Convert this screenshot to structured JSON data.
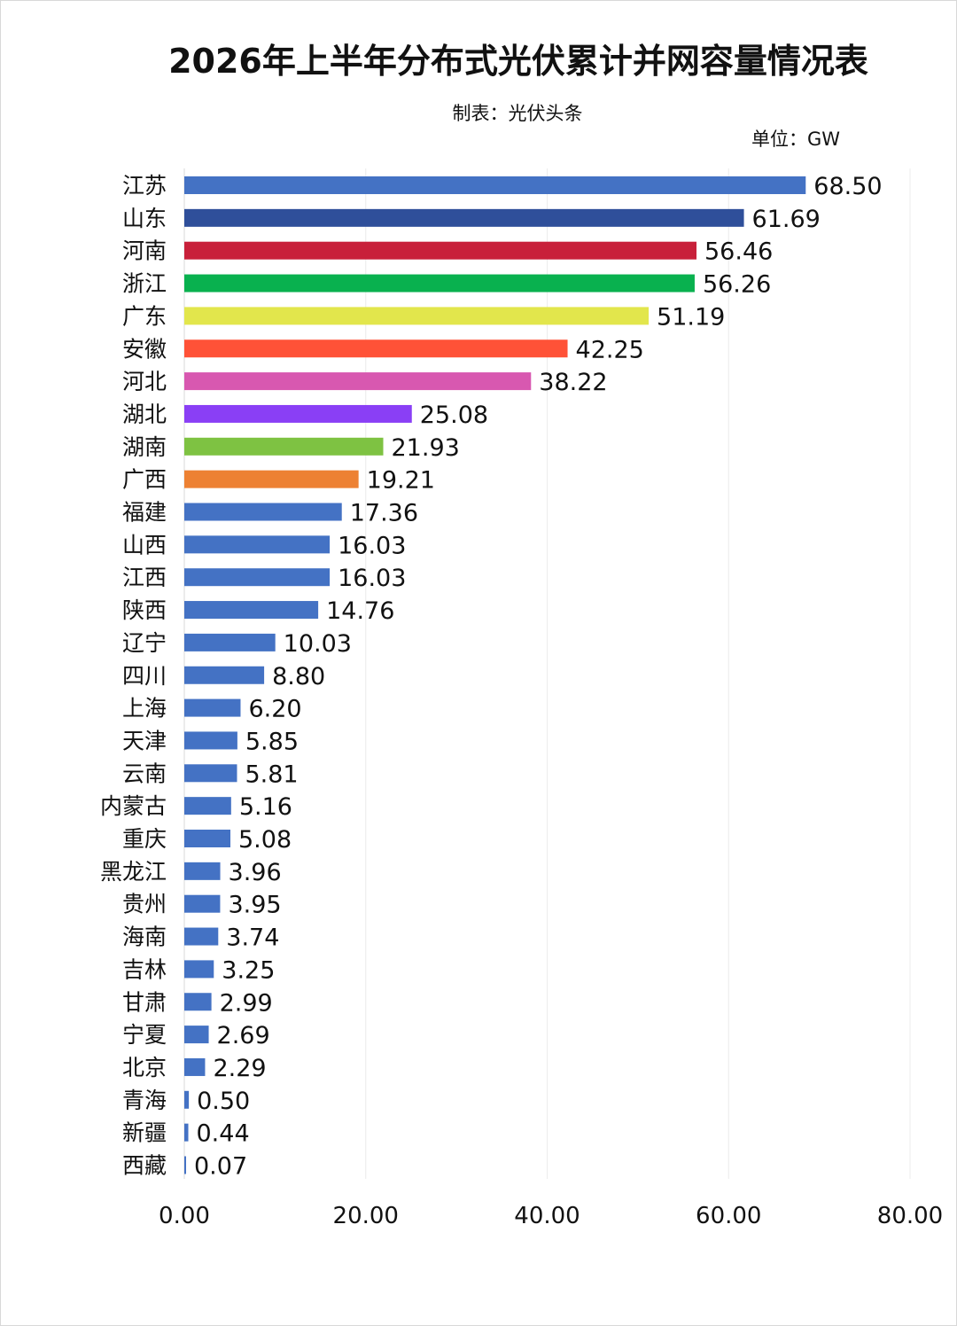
{
  "header": {
    "title": "2026年上半年分布式光伏累计并网容量情况表",
    "subtitle": "制表：光伏头条",
    "unit": "单位：GW"
  },
  "chart_data": {
    "type": "bar",
    "orientation": "horizontal",
    "title": "2026年上半年分布式光伏累计并网容量情况表",
    "xlim": [
      0,
      80
    ],
    "x_ticks": [
      "0.00",
      "20.00",
      "40.00",
      "60.00",
      "80.00"
    ],
    "grid": "vertical",
    "categories": [
      "江苏",
      "山东",
      "河南",
      "浙江",
      "广东",
      "安徽",
      "河北",
      "湖北",
      "湖南",
      "广西",
      "福建",
      "山西",
      "江西",
      "陕西",
      "辽宁",
      "四川",
      "上海",
      "天津",
      "云南",
      "内蒙古",
      "重庆",
      "黑龙江",
      "贵州",
      "海南",
      "吉林",
      "甘肃",
      "宁夏",
      "北京",
      "青海",
      "新疆",
      "西藏"
    ],
    "values": [
      68.5,
      61.69,
      56.46,
      56.26,
      51.19,
      42.25,
      38.22,
      25.08,
      21.93,
      19.21,
      17.36,
      16.03,
      16.03,
      14.76,
      10.03,
      8.8,
      6.2,
      5.85,
      5.81,
      5.16,
      5.08,
      3.96,
      3.95,
      3.74,
      3.25,
      2.99,
      2.69,
      2.29,
      0.5,
      0.44,
      0.07
    ],
    "value_labels": [
      "68.50",
      "61.69",
      "56.46",
      "56.26",
      "51.19",
      "42.25",
      "38.22",
      "25.08",
      "21.93",
      "19.21",
      "17.36",
      "16.03",
      "16.03",
      "14.76",
      "10.03",
      "8.80",
      "6.20",
      "5.85",
      "5.81",
      "5.16",
      "5.08",
      "3.96",
      "3.95",
      "3.74",
      "3.25",
      "2.99",
      "2.69",
      "2.29",
      "0.50",
      "0.44",
      "0.07"
    ],
    "colors": [
      "#4472c4",
      "#2f4f9a",
      "#c8203a",
      "#09b14f",
      "#e2e64c",
      "#ff5237",
      "#d858b0",
      "#8a3ff5",
      "#7ec242",
      "#ed8133",
      "#4472c4",
      "#4472c4",
      "#4472c4",
      "#4472c4",
      "#4472c4",
      "#4472c4",
      "#4472c4",
      "#4472c4",
      "#4472c4",
      "#4472c4",
      "#4472c4",
      "#4472c4",
      "#4472c4",
      "#4472c4",
      "#4472c4",
      "#4472c4",
      "#4472c4",
      "#4472c4",
      "#4472c4",
      "#4472c4",
      "#4472c4"
    ]
  }
}
